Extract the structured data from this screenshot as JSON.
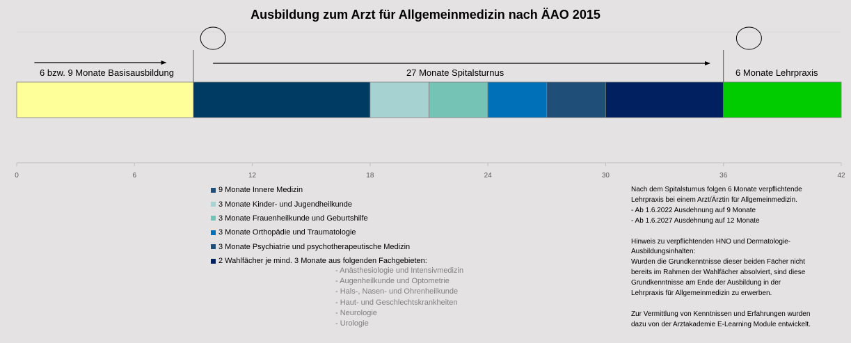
{
  "title": "Ausbildung zum Arzt für Allgemeinmedizin nach ÄAO 2015",
  "phases": {
    "basis": "6 bzw. 9 Monate Basisausbildung",
    "spital": "27 Monate Spitalsturnus",
    "lehrpraxis": "6 Monate Lehrpraxis"
  },
  "chart_data": {
    "type": "bar",
    "orientation": "horizontal-stacked",
    "x_ticks": [
      0,
      6,
      12,
      18,
      24,
      30,
      36,
      42
    ],
    "xlim": [
      0,
      42
    ],
    "grid": false,
    "segments": [
      {
        "start": 0,
        "end": 9,
        "color": "#ffff99"
      },
      {
        "start": 9,
        "end": 18,
        "color": "#003b63"
      },
      {
        "start": 18,
        "end": 21,
        "color": "#a6d3d1"
      },
      {
        "start": 21,
        "end": 24,
        "color": "#74c3b5"
      },
      {
        "start": 24,
        "end": 27,
        "color": "#0070b8"
      },
      {
        "start": 27,
        "end": 30,
        "color": "#1f4e78"
      },
      {
        "start": 30,
        "end": 36,
        "color": "#002060"
      },
      {
        "start": 36,
        "end": 42,
        "color": "#00cc00"
      }
    ],
    "phase_markers": [
      9,
      36
    ],
    "circle_markers": [
      10,
      37.3
    ]
  },
  "legend": [
    {
      "label": "9 Monate Innere Medizin",
      "color": "#1f4e78"
    },
    {
      "label": "3 Monate Kinder- und Jugendheilkunde",
      "color": "#a6d3d1"
    },
    {
      "label": "3 Monate Frauenheilkunde und Geburtshilfe",
      "color": "#74c3b5"
    },
    {
      "label": "3 Monate Orthopädie und Traumatologie",
      "color": "#0070b8"
    },
    {
      "label": "3 Monate Psychiatrie und psychotherapeutische Medizin",
      "color": "#1f4e78"
    },
    {
      "label": "2 Wahlfächer je mind. 3 Monate aus folgenden Fachgebieten:",
      "color": "#002060"
    }
  ],
  "wahlfaecher": [
    "- Anästhesiologie und Intensivmedizin",
    "- Augenheilkunde und Optometrie",
    "- Hals-, Nasen- und Ohrenheilkunde",
    "- Haut- und Geschlechtskrankheiten",
    "- Neurologie",
    "- Urologie"
  ],
  "notes": {
    "p1": [
      "Nach dem Spitalsturnus folgen 6 Monate verpflichtende",
      "Lehrpraxis bei einem Arzt/Ärztin für Allgemeinmedizin.",
      "- Ab 1.6.2022  Ausdehnung auf 9 Monate",
      "- Ab 1.6.2027  Ausdehnung auf 12 Monate"
    ],
    "p2": [
      "Hinweis zu verpflichtenden HNO und Dermatologie-",
      "Ausbildungsinhalten:",
      "Wurden die Grundkenntnisse dieser beiden Fächer nicht",
      "bereits im Rahmen der Wahlfächer absolviert, sind diese",
      "Grundkenntnisse am Ende der Ausbildung in der",
      "Lehrpraxis für Allgemeinmedizin zu erwerben."
    ],
    "p3": [
      "Zur Vermittlung von Kenntnissen und Erfahrungen wurden",
      "dazu von der Arztakademie E-Learning Module entwickelt."
    ]
  }
}
